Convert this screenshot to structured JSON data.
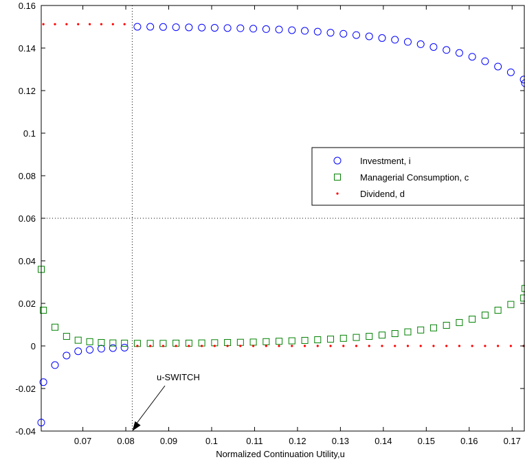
{
  "chart_data": {
    "type": "scatter",
    "xlabel": "Normalized Continuation Utility,u",
    "ylabel": "",
    "xlim": [
      0.0603,
      0.173
    ],
    "ylim": [
      -0.04,
      0.16
    ],
    "xticks": [
      0.07,
      0.08,
      0.09,
      0.1,
      0.11,
      0.12,
      0.13,
      0.14,
      0.15,
      0.16,
      0.17
    ],
    "xtick_labels": [
      "0.07",
      "0.08",
      "0.09",
      "0.1",
      "0.11",
      "0.12",
      "0.13",
      "0.14",
      "0.15",
      "0.16",
      "0.17"
    ],
    "yticks": [
      -0.04,
      -0.02,
      0,
      0.02,
      0.04,
      0.06,
      0.08,
      0.1,
      0.12,
      0.14,
      0.16
    ],
    "ytick_labels": [
      "-0.04",
      "-0.02",
      "0",
      "0.02",
      "0.04",
      "0.06",
      "0.08",
      "0.1",
      "0.12",
      "0.14",
      "0.16"
    ],
    "legend_position": "center-right",
    "reference_lines": {
      "vertical_x": 0.0815,
      "horizontal_y": 0.06
    },
    "annotation": {
      "text": "u-SWITCH",
      "x": 0.0815,
      "y": -0.04
    },
    "series": [
      {
        "name": "Investment, i",
        "marker": "circle",
        "color": "#0000ff",
        "x": [
          0.0603,
          0.0608,
          0.0635,
          0.0662,
          0.0689,
          0.0716,
          0.0743,
          0.077,
          0.0797,
          0.0827,
          0.0857,
          0.0887,
          0.0917,
          0.0947,
          0.0977,
          0.1007,
          0.1037,
          0.1067,
          0.1097,
          0.1127,
          0.1157,
          0.1187,
          0.1217,
          0.1247,
          0.1277,
          0.1307,
          0.1337,
          0.1367,
          0.1397,
          0.1427,
          0.1457,
          0.1487,
          0.1517,
          0.1547,
          0.1577,
          0.1607,
          0.1637,
          0.1667,
          0.1697,
          0.1727,
          0.173
        ],
        "y": [
          -0.036,
          -0.017,
          -0.009,
          -0.0045,
          -0.0025,
          -0.0018,
          -0.0013,
          -0.001,
          -0.0008,
          0.15,
          0.15,
          0.1499,
          0.1498,
          0.1497,
          0.1496,
          0.1495,
          0.1494,
          0.1493,
          0.1491,
          0.1489,
          0.1487,
          0.1484,
          0.1481,
          0.1477,
          0.1472,
          0.1467,
          0.1461,
          0.1455,
          0.1447,
          0.1439,
          0.1429,
          0.1418,
          0.1405,
          0.1391,
          0.1377,
          0.1359,
          0.1338,
          0.1313,
          0.1286,
          0.1252,
          0.1235
        ]
      },
      {
        "name": "Managerial Consumption, c",
        "marker": "square",
        "color": "#008000",
        "x": [
          0.0603,
          0.0608,
          0.0635,
          0.0662,
          0.0689,
          0.0716,
          0.0743,
          0.077,
          0.0797,
          0.0827,
          0.0857,
          0.0887,
          0.0917,
          0.0947,
          0.0977,
          0.1007,
          0.1037,
          0.1067,
          0.1097,
          0.1127,
          0.1157,
          0.1187,
          0.1217,
          0.1247,
          0.1277,
          0.1307,
          0.1337,
          0.1367,
          0.1397,
          0.1427,
          0.1457,
          0.1487,
          0.1517,
          0.1547,
          0.1577,
          0.1607,
          0.1637,
          0.1667,
          0.1697,
          0.1727,
          0.173
        ],
        "y": [
          0.036,
          0.0168,
          0.0088,
          0.0045,
          0.0027,
          0.002,
          0.0016,
          0.0014,
          0.0013,
          0.0012,
          0.0012,
          0.0012,
          0.0013,
          0.0013,
          0.0014,
          0.0015,
          0.0016,
          0.0017,
          0.0018,
          0.002,
          0.0022,
          0.0024,
          0.0026,
          0.0029,
          0.0032,
          0.0036,
          0.004,
          0.0045,
          0.0051,
          0.0058,
          0.0066,
          0.0075,
          0.0085,
          0.0097,
          0.011,
          0.0126,
          0.0145,
          0.0168,
          0.0195,
          0.0225,
          0.027
        ]
      },
      {
        "name": "Dividend, d",
        "marker": "dot",
        "color": "#ff0000",
        "x": [
          0.0608,
          0.0635,
          0.0662,
          0.0689,
          0.0716,
          0.0743,
          0.077,
          0.0797,
          0.0827,
          0.0857,
          0.0887,
          0.0917,
          0.0947,
          0.0977,
          0.1007,
          0.1037,
          0.1067,
          0.1097,
          0.1127,
          0.1157,
          0.1187,
          0.1217,
          0.1247,
          0.1277,
          0.1307,
          0.1337,
          0.1367,
          0.1397,
          0.1427,
          0.1457,
          0.1487,
          0.1517,
          0.1547,
          0.1577,
          0.1607,
          0.1637,
          0.1667,
          0.1697,
          0.1727
        ],
        "y": [
          0.1512,
          0.1512,
          0.1512,
          0.1512,
          0.1512,
          0.1512,
          0.1512,
          0.1512,
          0,
          0,
          0,
          0,
          0,
          0,
          0,
          0,
          0,
          0,
          0,
          0,
          0,
          0,
          0,
          0,
          0,
          0,
          0,
          0,
          0,
          0,
          0,
          0,
          0,
          0,
          0,
          0,
          0,
          0,
          0
        ]
      }
    ]
  }
}
